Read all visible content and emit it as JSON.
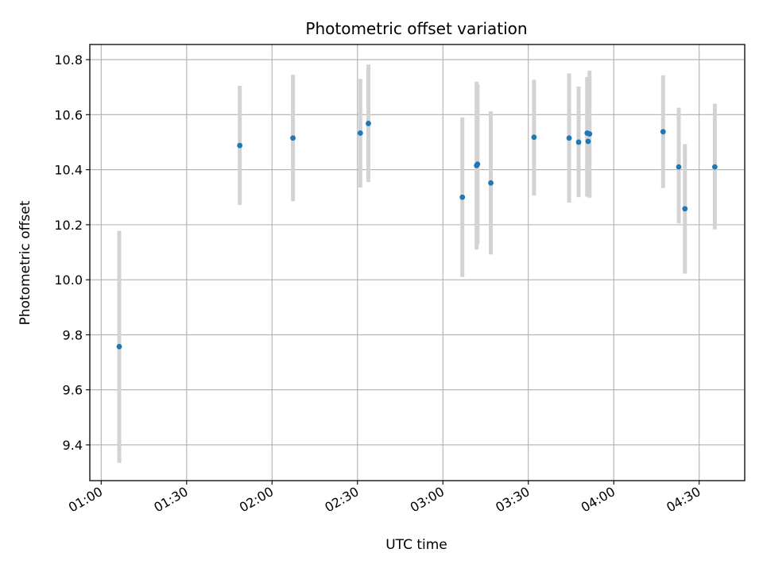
{
  "chart_data": {
    "type": "scatter",
    "title": "Photometric offset variation",
    "xlabel": "UTC time",
    "ylabel": "Photometric offset",
    "x_ticks": [
      "01:00",
      "01:30",
      "02:00",
      "02:30",
      "03:00",
      "03:30",
      "04:00",
      "04:30"
    ],
    "y_ticks": [
      "9.4",
      "9.6",
      "9.8",
      "10.0",
      "10.2",
      "10.4",
      "10.6",
      "10.8"
    ],
    "xlim": [
      "00:56",
      "04:46"
    ],
    "ylim": [
      9.27,
      10.855
    ],
    "grid": true,
    "point_color": "#1f77b4",
    "errorbar_color": "#d3d3d3",
    "points": [
      {
        "time": "01:06:20",
        "y": 9.757,
        "ylow": 9.335,
        "yhigh": 10.178
      },
      {
        "time": "01:48:40",
        "y": 10.488,
        "ylow": 10.272,
        "yhigh": 10.705
      },
      {
        "time": "02:07:20",
        "y": 10.515,
        "ylow": 10.285,
        "yhigh": 10.745
      },
      {
        "time": "02:31:00",
        "y": 10.533,
        "ylow": 10.335,
        "yhigh": 10.73
      },
      {
        "time": "02:33:50",
        "y": 10.568,
        "ylow": 10.355,
        "yhigh": 10.782
      },
      {
        "time": "03:06:50",
        "y": 10.3,
        "ylow": 10.01,
        "yhigh": 10.59
      },
      {
        "time": "03:11:50",
        "y": 10.415,
        "ylow": 10.11,
        "yhigh": 10.72
      },
      {
        "time": "03:12:10",
        "y": 10.42,
        "ylow": 10.13,
        "yhigh": 10.71
      },
      {
        "time": "03:16:50",
        "y": 10.352,
        "ylow": 10.092,
        "yhigh": 10.612
      },
      {
        "time": "03:32:00",
        "y": 10.518,
        "ylow": 10.306,
        "yhigh": 10.727
      },
      {
        "time": "03:44:20",
        "y": 10.515,
        "ylow": 10.28,
        "yhigh": 10.75
      },
      {
        "time": "03:47:40",
        "y": 10.5,
        "ylow": 10.3,
        "yhigh": 10.702
      },
      {
        "time": "03:50:40",
        "y": 10.533,
        "ylow": 10.302,
        "yhigh": 10.737
      },
      {
        "time": "03:51:00",
        "y": 10.503,
        "ylow": 10.31,
        "yhigh": 10.7
      },
      {
        "time": "03:51:30",
        "y": 10.53,
        "ylow": 10.298,
        "yhigh": 10.76
      },
      {
        "time": "04:17:20",
        "y": 10.538,
        "ylow": 10.333,
        "yhigh": 10.743
      },
      {
        "time": "04:22:50",
        "y": 10.41,
        "ylow": 10.205,
        "yhigh": 10.625
      },
      {
        "time": "04:25:00",
        "y": 10.258,
        "ylow": 10.022,
        "yhigh": 10.493
      },
      {
        "time": "04:35:30",
        "y": 10.41,
        "ylow": 10.183,
        "yhigh": 10.64
      }
    ]
  }
}
